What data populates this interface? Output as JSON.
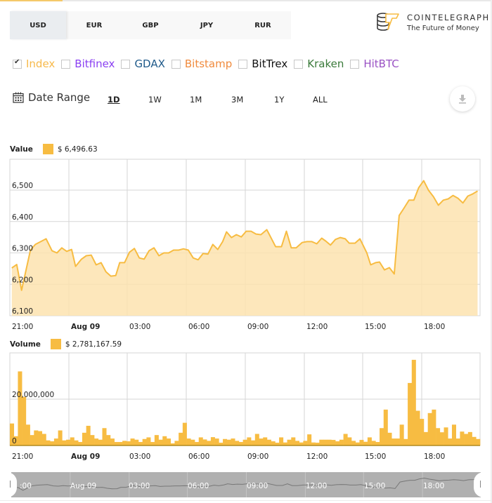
{
  "currency_tabs": [
    {
      "label": "USD",
      "active": true
    },
    {
      "label": "EUR",
      "active": false
    },
    {
      "label": "GBP",
      "active": false
    },
    {
      "label": "JPY",
      "active": false
    },
    {
      "label": "RUR",
      "active": false
    }
  ],
  "logo": {
    "name": "COINTELEGRAPH",
    "tagline": "The Future of Money"
  },
  "exchanges": [
    {
      "label": "Index",
      "checked": true,
      "color": "#f7b94a"
    },
    {
      "label": "Bitfinex",
      "checked": false,
      "color": "#8a3ff2"
    },
    {
      "label": "GDAX",
      "checked": false,
      "color": "#1f5a8a"
    },
    {
      "label": "Bitstamp",
      "checked": false,
      "color": "#f08a3c"
    },
    {
      "label": "BitTrex",
      "checked": false,
      "color": "#111111"
    },
    {
      "label": "Kraken",
      "checked": false,
      "color": "#3a7a3a"
    },
    {
      "label": "HitBTC",
      "checked": false,
      "color": "#9a52c4"
    }
  ],
  "date_range": {
    "label": "Date Range",
    "options": [
      {
        "label": "1D",
        "active": true
      },
      {
        "label": "1W",
        "active": false
      },
      {
        "label": "1M",
        "active": false
      },
      {
        "label": "3M",
        "active": false
      },
      {
        "label": "1Y",
        "active": false
      },
      {
        "label": "ALL",
        "active": false
      }
    ]
  },
  "download": {
    "icon": "download-icon"
  },
  "colors": {
    "accent": "#f7bc42",
    "area_fill": "#fde3af",
    "grid": "#d6d6d6",
    "navigator": "#b0b0b0"
  },
  "value_legend": {
    "label": "Value",
    "value": "$ 6,496.63"
  },
  "volume_legend": {
    "label": "Volume",
    "value": "$ 2,781,167.59"
  },
  "navigator": {
    "labels": [
      ":00",
      "Aug 09",
      "03:00",
      "06:00",
      "09:00",
      "12:00",
      "15:00",
      "18:00"
    ]
  },
  "chart_data": [
    {
      "type": "area",
      "title": "Value",
      "xlabel": "",
      "ylabel": "",
      "ylim": [
        6100,
        6600
      ],
      "yticks": [
        6100,
        6200,
        6300,
        6400,
        6500
      ],
      "ytick_labels": [
        "6,100",
        "6,200",
        "6,300",
        "6,400",
        "6,500"
      ],
      "xtick_labels": [
        "21:00",
        "Aug 09",
        "03:00",
        "06:00",
        "09:00",
        "12:00",
        "15:00",
        "18:00"
      ],
      "xtick_bold": [
        "Aug 09"
      ],
      "grid": true,
      "legend": {
        "label": "Value",
        "value": "$ 6,496.63"
      },
      "x_hours": [
        0.1,
        0.35,
        0.6,
        1.05,
        1.3,
        1.85,
        2.15,
        2.4,
        2.65,
        2.9,
        3.15,
        3.35,
        3.65,
        3.9,
        4.15,
        4.4,
        4.65,
        4.9,
        5.15,
        5.4,
        5.6,
        5.85,
        6.1,
        6.35,
        6.6,
        6.85,
        7.1,
        7.35,
        7.6,
        7.85,
        8.1,
        8.35,
        8.6,
        8.85,
        9.1,
        9.35,
        9.6,
        9.85,
        10.1,
        10.35,
        10.6,
        10.85,
        11.05,
        11.3,
        11.55,
        11.8,
        12.05,
        12.3,
        12.55,
        12.8,
        13.1,
        13.55,
        13.85,
        14.1,
        14.35,
        14.6,
        14.9,
        15.15,
        15.4,
        15.65,
        15.9,
        16.1,
        16.35,
        16.6,
        16.85,
        17.1,
        17.3,
        17.6,
        17.85,
        18.2,
        18.4,
        18.65,
        18.85,
        19.1,
        19.35,
        19.6,
        19.85,
        20.1,
        20.35,
        20.6,
        20.85,
        21.1,
        21.35,
        21.6,
        21.85,
        22.1,
        22.35,
        22.6,
        22.85,
        23.1,
        23.35,
        23.6,
        23.85
      ],
      "values": [
        6252,
        6263,
        6181,
        6309,
        6327,
        6345,
        6307,
        6300,
        6316,
        6305,
        6311,
        6257,
        6280,
        6291,
        6293,
        6262,
        6269,
        6240,
        6226,
        6228,
        6269,
        6269,
        6302,
        6314,
        6284,
        6280,
        6307,
        6316,
        6291,
        6300,
        6300,
        6309,
        6309,
        6313,
        6309,
        6284,
        6278,
        6298,
        6296,
        6327,
        6311,
        6336,
        6367,
        6349,
        6358,
        6351,
        6369,
        6369,
        6360,
        6358,
        6374,
        6320,
        6320,
        6369,
        6316,
        6316,
        6333,
        6336,
        6336,
        6329,
        6347,
        6338,
        6325,
        6343,
        6349,
        6345,
        6331,
        6331,
        6345,
        6300,
        6262,
        6269,
        6271,
        6246,
        6253,
        6233,
        6419,
        6443,
        6468,
        6468,
        6508,
        6530,
        6499,
        6479,
        6452,
        6468,
        6472,
        6483,
        6474,
        6459,
        6481,
        6488,
        6497
      ]
    },
    {
      "type": "bar",
      "title": "Volume",
      "xlabel": "",
      "ylabel": "",
      "ylim": [
        0,
        40000000
      ],
      "yticks": [
        0,
        20000000
      ],
      "ytick_labels": [
        "0",
        "20,000,000"
      ],
      "xtick_labels": [
        "21:00",
        "Aug 09",
        "03:00",
        "06:00",
        "09:00",
        "12:00",
        "15:00",
        "18:00"
      ],
      "xtick_bold": [
        "Aug 09"
      ],
      "grid": true,
      "legend": {
        "label": "Volume",
        "value": "$ 2,781,167.59"
      },
      "bar_interval_minutes": 15,
      "values": [
        9500000,
        4000000,
        32000000,
        21000000,
        9000000,
        4500000,
        6500000,
        6200000,
        5000000,
        2200000,
        1800000,
        3000000,
        6500000,
        2200000,
        2500000,
        3500000,
        2200000,
        1500000,
        5500000,
        8500000,
        4500000,
        3000000,
        2500000,
        7500000,
        4500000,
        3000000,
        1500000,
        1500000,
        2000000,
        1800000,
        3000000,
        2500000,
        1500000,
        2800000,
        3500000,
        1500000,
        4500000,
        2500000,
        4000000,
        3000000,
        900000,
        2000000,
        5500000,
        9800000,
        3000000,
        2500000,
        1500000,
        3500000,
        2600000,
        2000000,
        3600000,
        3000000,
        1200000,
        2800000,
        2500000,
        3000000,
        2000000,
        1500000,
        2500000,
        3500000,
        2200000,
        5000000,
        3000000,
        3500000,
        2500000,
        1800000,
        1200000,
        3500000,
        1300000,
        2500000,
        3500000,
        2000000,
        1300000,
        2000000,
        4800000,
        1300000,
        1200000,
        2500000,
        2500000,
        2500000,
        2400000,
        1800000,
        2500000,
        5000000,
        3500000,
        2000000,
        1300000,
        2400000,
        1600000,
        3500000,
        2000000,
        1500000,
        7500000,
        15500000,
        5500000,
        3000000,
        3000000,
        9000000,
        2800000,
        27000000,
        37000000,
        15000000,
        11500000,
        5800000,
        14000000,
        15500000,
        7500000,
        5700000,
        7800000,
        3000000,
        9000000,
        3000000,
        6000000,
        5000000,
        5800000,
        3700000,
        2800000
      ]
    }
  ]
}
